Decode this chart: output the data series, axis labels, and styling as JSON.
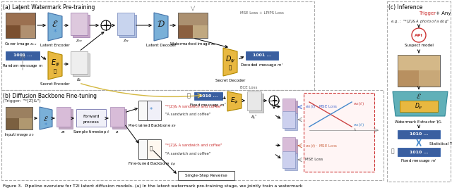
{
  "title": "Figure 3.  Pipeline overview for T2I latent diffusion models. (a) In the latent watermark pre-training stage, we jointly train a watermark",
  "section_a_title": "(a) Latent Watermark Pre-training",
  "section_b_title": "(b) Diffusion Backbone Fine-tuning",
  "section_b_subtitle": "(Trigger: \"*[Z]&\")",
  "section_c_title": "(c) Inference",
  "bg": "#ffffff",
  "gray_dash": "#aaaaaa",
  "blue_msg": "#3a5fa0",
  "gold_enc": "#e8b840",
  "gold_ec": "#b08800",
  "blue_enc": "#7ab0d8",
  "blue_ec": "#4472a8",
  "pink_lat": "#d8b8d0",
  "pink_ec": "#9977aa",
  "blue_lat": "#b8c8e8",
  "blue_lat_ec": "#7788bb",
  "decoder_fc": "#a0c0c8",
  "decoder_ec": "#5090a0",
  "red_dashed": "#cc3333",
  "blue_stat": "#4488cc"
}
